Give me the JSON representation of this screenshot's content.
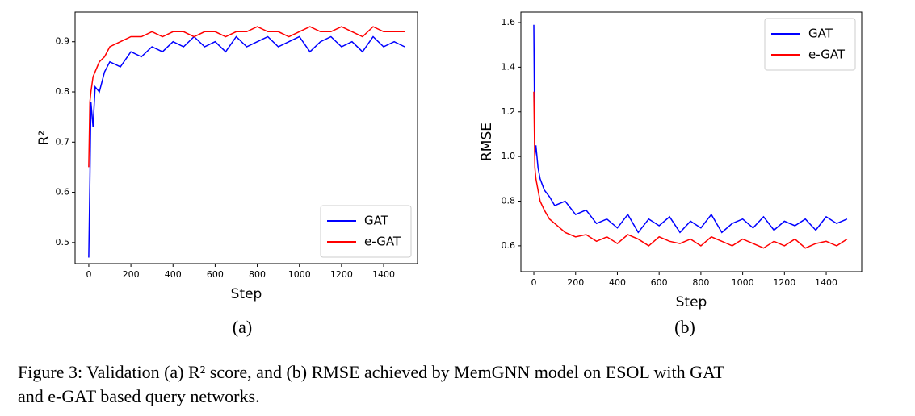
{
  "chart_data": [
    {
      "type": "line",
      "ylabel": "R²",
      "xlabel": "Step",
      "xlim": [
        -65,
        1561
      ],
      "ylim": [
        0.458,
        0.959
      ],
      "xticks": [
        0,
        200,
        400,
        600,
        800,
        1000,
        1200,
        1400
      ],
      "yticks": [
        0.5,
        0.6,
        0.7,
        0.8,
        0.9
      ],
      "legend": "lower right",
      "grid": false,
      "x": [
        0,
        5,
        10,
        20,
        30,
        50,
        75,
        100,
        150,
        200,
        250,
        300,
        350,
        400,
        450,
        500,
        550,
        600,
        650,
        700,
        750,
        800,
        850,
        900,
        950,
        1000,
        1050,
        1100,
        1150,
        1200,
        1250,
        1300,
        1350,
        1400,
        1450,
        1500
      ],
      "series": [
        {
          "name": "GAT",
          "color": "#0000ff",
          "values": [
            0.47,
            0.62,
            0.78,
            0.73,
            0.81,
            0.8,
            0.84,
            0.86,
            0.85,
            0.88,
            0.87,
            0.89,
            0.88,
            0.9,
            0.89,
            0.91,
            0.89,
            0.9,
            0.88,
            0.91,
            0.89,
            0.9,
            0.91,
            0.89,
            0.9,
            0.91,
            0.88,
            0.9,
            0.91,
            0.89,
            0.9,
            0.88,
            0.91,
            0.89,
            0.9,
            0.89
          ]
        },
        {
          "name": "e-GAT",
          "color": "#ff0000",
          "values": [
            0.65,
            0.78,
            0.8,
            0.83,
            0.84,
            0.86,
            0.87,
            0.89,
            0.9,
            0.91,
            0.91,
            0.92,
            0.91,
            0.92,
            0.92,
            0.91,
            0.92,
            0.92,
            0.91,
            0.92,
            0.92,
            0.93,
            0.92,
            0.92,
            0.91,
            0.92,
            0.93,
            0.92,
            0.92,
            0.93,
            0.92,
            0.91,
            0.93,
            0.92,
            0.92,
            0.92
          ]
        }
      ]
    },
    {
      "type": "line",
      "ylabel": "RMSE",
      "xlabel": "Step",
      "xlim": [
        -62,
        1570
      ],
      "ylim": [
        0.484,
        1.647
      ],
      "xticks": [
        0,
        200,
        400,
        600,
        800,
        1000,
        1200,
        1400
      ],
      "yticks": [
        0.6,
        0.8,
        {
          "value": 1,
          "label": "1.0"
        },
        1.2,
        1.4,
        1.6
      ],
      "legend": "upper right",
      "grid": false,
      "x": [
        0,
        5,
        10,
        20,
        30,
        50,
        75,
        100,
        150,
        200,
        250,
        300,
        350,
        400,
        450,
        500,
        550,
        600,
        650,
        700,
        750,
        800,
        850,
        900,
        950,
        1000,
        1050,
        1100,
        1150,
        1200,
        1250,
        1300,
        1350,
        1400,
        1450,
        1500
      ],
      "series": [
        {
          "name": "GAT",
          "color": "#0000ff",
          "values": [
            1.59,
            1.0,
            1.05,
            0.95,
            0.9,
            0.85,
            0.82,
            0.78,
            0.8,
            0.74,
            0.76,
            0.7,
            0.72,
            0.68,
            0.74,
            0.66,
            0.72,
            0.69,
            0.73,
            0.66,
            0.71,
            0.68,
            0.74,
            0.66,
            0.7,
            0.72,
            0.68,
            0.73,
            0.67,
            0.71,
            0.69,
            0.72,
            0.67,
            0.73,
            0.7,
            0.72
          ]
        },
        {
          "name": "e-GAT",
          "color": "#ff0000",
          "values": [
            1.29,
            0.95,
            0.9,
            0.85,
            0.8,
            0.76,
            0.72,
            0.7,
            0.66,
            0.64,
            0.65,
            0.62,
            0.64,
            0.61,
            0.65,
            0.63,
            0.6,
            0.64,
            0.62,
            0.61,
            0.63,
            0.6,
            0.64,
            0.62,
            0.6,
            0.63,
            0.61,
            0.59,
            0.62,
            0.6,
            0.63,
            0.59,
            0.61,
            0.62,
            0.6,
            0.63
          ]
        }
      ]
    }
  ],
  "subcaptions": [
    "(a)",
    "(b)"
  ],
  "caption": [
    "Figure 3: Validation (a) R² score, and (b) RMSE achieved by MemGNN model on ESOL with GAT",
    "and e-GAT based query networks."
  ]
}
